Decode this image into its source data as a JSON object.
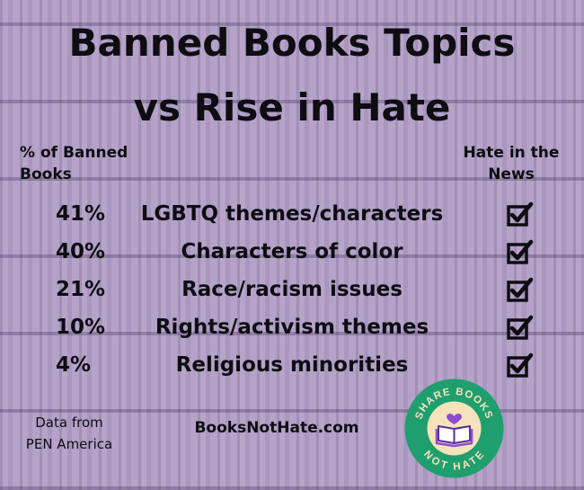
{
  "title_line1": "Banned Books Topics",
  "title_line2": "vs Rise in Hate",
  "header_left_line1": "% of Banned",
  "header_left_line2": "Books",
  "header_right_line1": "Hate in the",
  "header_right_line2": "News",
  "rows": [
    {
      "percent": "41%",
      "topic": "LGBTQ themes/characters"
    },
    {
      "percent": "40%",
      "topic": "Characters of color"
    },
    {
      "percent": "21%",
      "topic": "Race/racism issues"
    },
    {
      "percent": "10%",
      "topic": "Rights/activism themes"
    },
    {
      "percent": "4%",
      "topic": "Religious minorities"
    }
  ],
  "footer_source_line1": "Data from",
  "footer_source_line2": "PEN America",
  "footer_website": "BooksNotHate.com",
  "logo": {
    "top_text": "SHARE BOOKS",
    "bottom_text": "NOT HATE",
    "icon": "open-book-heart-icon"
  },
  "colors": {
    "background": "#b29fc6",
    "text": "#0d0d12",
    "logo_ring": "#1f9e6e",
    "logo_center": "#f4e3bb",
    "logo_heart": "#8a4bd1"
  }
}
